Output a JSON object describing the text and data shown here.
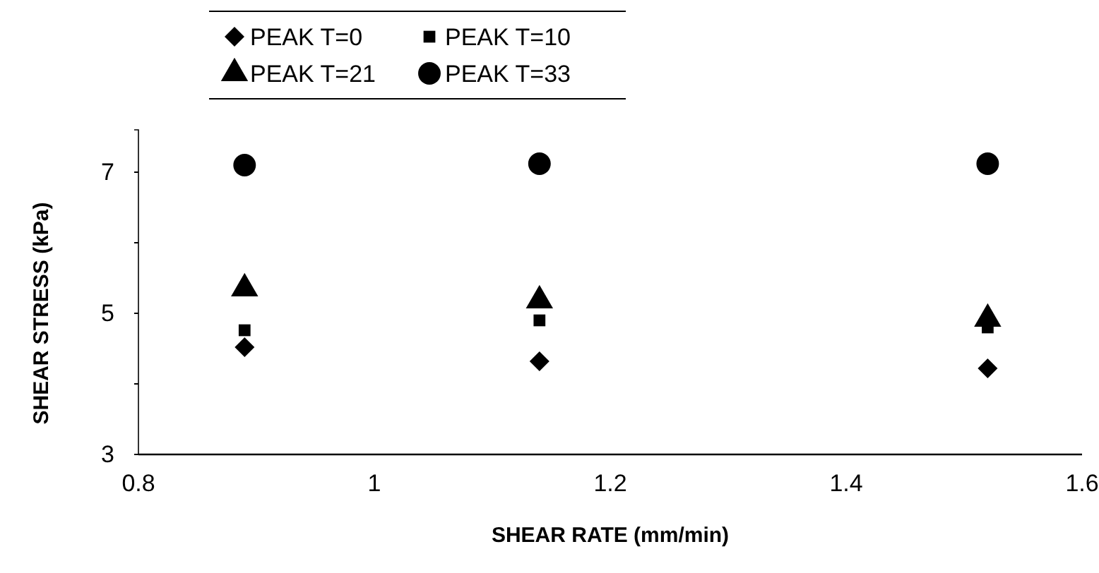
{
  "chart_data": {
    "type": "scatter",
    "xlabel": "SHEAR RATE (mm/min)",
    "ylabel": "SHEAR STRESS (kPa)",
    "x": [
      0.89,
      1.14,
      1.52
    ],
    "series": [
      {
        "name": "PEAK T=0",
        "color": "#000000",
        "marker": "diamond",
        "values": [
          4.52,
          4.32,
          4.22
        ]
      },
      {
        "name": "PEAK T=10",
        "color": "#000000",
        "marker": "square",
        "values": [
          4.76,
          4.9,
          4.8
        ]
      },
      {
        "name": "PEAK T=21",
        "color": "#000000",
        "marker": "triangle",
        "values": [
          5.35,
          5.18,
          4.92
        ]
      },
      {
        "name": "PEAK T=33",
        "color": "#000000",
        "marker": "circle",
        "values": [
          7.1,
          7.12,
          7.12
        ]
      }
    ],
    "xlim": [
      0.8,
      1.6
    ],
    "xticks": [
      0.8,
      1,
      1.2,
      1.4,
      1.6
    ],
    "ylim": [
      3,
      7.6
    ],
    "yticks": [
      3,
      {
        "value": 4,
        "label": null
      },
      5,
      {
        "value": 6,
        "label": null
      },
      7
    ],
    "grid": false,
    "legend": "top"
  }
}
